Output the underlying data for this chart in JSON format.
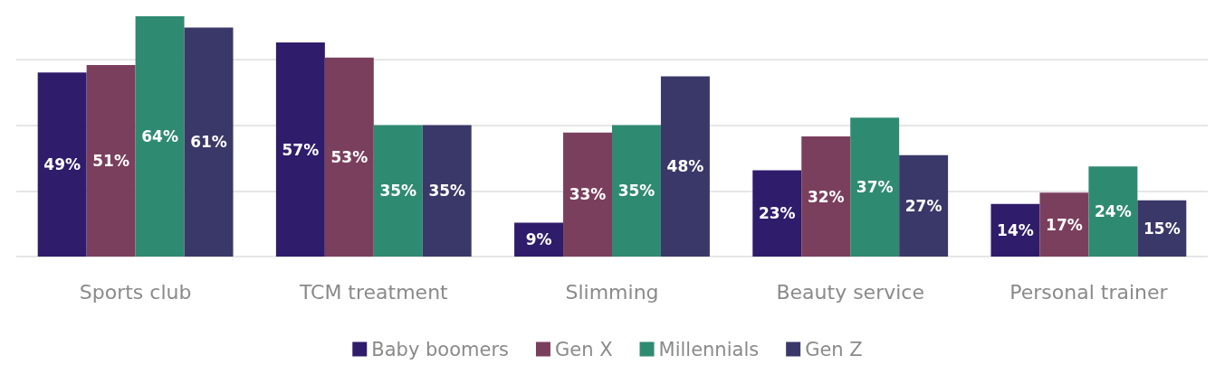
{
  "chart_data": {
    "type": "bar",
    "categories": [
      "Sports club",
      "TCM treatment",
      "Slimming",
      "Beauty service",
      "Personal trainer"
    ],
    "series": [
      {
        "name": "Baby boomers",
        "color": "#2f1c6b",
        "values": [
          49,
          57,
          9,
          23,
          14
        ],
        "value_labels": [
          "49%",
          "57%",
          "9%",
          "23%",
          "14%"
        ]
      },
      {
        "name": "Gen X",
        "color": "#7b3f5e",
        "values": [
          51,
          53,
          33,
          32,
          17
        ],
        "value_labels": [
          "51%",
          "53%",
          "33%",
          "32%",
          "17%"
        ]
      },
      {
        "name": "Millennials",
        "color": "#2f8a72",
        "values": [
          64,
          35,
          35,
          37,
          24
        ],
        "value_labels": [
          "64%",
          "35%",
          "35%",
          "37%",
          "24%"
        ]
      },
      {
        "name": "Gen Z",
        "color": "#3a3868",
        "values": [
          61,
          35,
          48,
          27,
          15
        ],
        "value_labels": [
          "61%",
          "35%",
          "48%",
          "27%",
          "15%"
        ]
      }
    ],
    "yticks": [
      {
        "value": 0,
        "label": null
      },
      {
        "value": 17.5,
        "label": null
      },
      {
        "value": 35,
        "label": null
      },
      {
        "value": 52.5,
        "label": null
      }
    ],
    "tick_labels": "x",
    "grid": "y",
    "legend": "bottom"
  }
}
